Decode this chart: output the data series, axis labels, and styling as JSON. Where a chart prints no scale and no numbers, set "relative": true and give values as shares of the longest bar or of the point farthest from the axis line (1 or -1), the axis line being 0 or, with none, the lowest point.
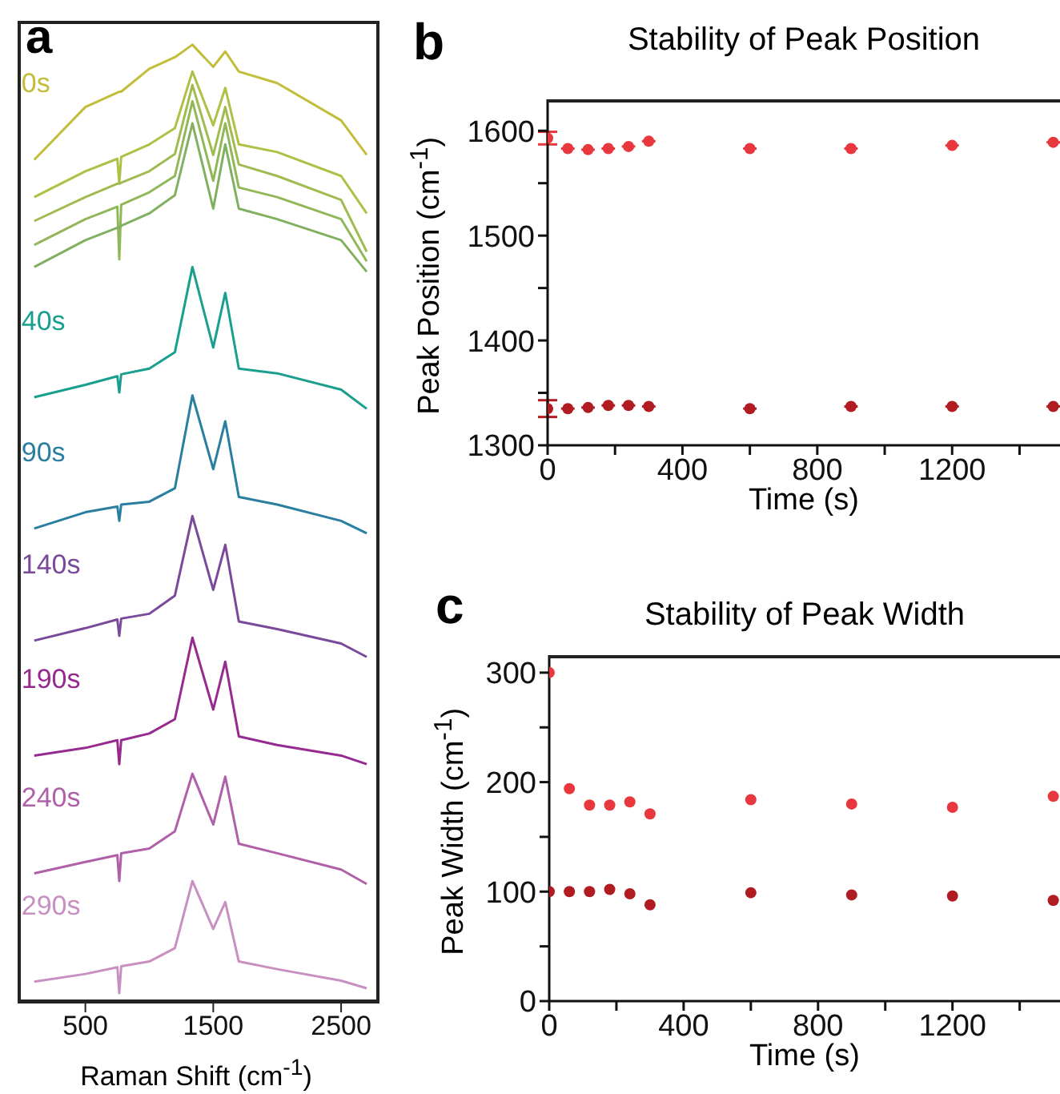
{
  "chart_data": [
    {
      "type": "line",
      "relative": true,
      "annotations": [
        "a"
      ],
      "xlabel": "Raman Shift (cm$^{-1}$)",
      "xlim": [
        -30,
        2800
      ],
      "xticks": [
        500,
        1500,
        2500
      ],
      "x": [
        100,
        500,
        750,
        765,
        780,
        1000,
        1200,
        1337,
        1500,
        1594,
        1700,
        2000,
        2500,
        2700
      ],
      "series": [
        {
          "name": "0s",
          "color": "#c2bd3a",
          "values": [
            0.88,
            0.935,
            0.95,
            0.951,
            0.951,
            0.975,
            0.987,
            1.0,
            0.977,
            0.993,
            0.972,
            0.96,
            0.921,
            0.885
          ]
        },
        {
          "color": "#b0bf45",
          "values": [
            0.841,
            0.868,
            0.881,
            0.855,
            0.883,
            0.896,
            0.913,
            0.972,
            0.916,
            0.955,
            0.896,
            0.888,
            0.863,
            0.824
          ]
        },
        {
          "color": "#a0bb50",
          "values": [
            0.816,
            0.841,
            0.855,
            0.855,
            0.856,
            0.868,
            0.886,
            0.958,
            0.885,
            0.935,
            0.875,
            0.863,
            0.838,
            0.784
          ]
        },
        {
          "color": "#90b858",
          "values": [
            0.791,
            0.818,
            0.831,
            0.776,
            0.833,
            0.846,
            0.863,
            0.941,
            0.858,
            0.918,
            0.851,
            0.841,
            0.818,
            0.774
          ]
        },
        {
          "color": "#80b060",
          "values": [
            0.768,
            0.796,
            0.809,
            0.809,
            0.811,
            0.824,
            0.843,
            0.918,
            0.829,
            0.896,
            0.829,
            0.818,
            0.796,
            0.763
          ]
        },
        {
          "name": "40s",
          "color": "#1a9f8f",
          "values": [
            0.632,
            0.645,
            0.654,
            0.637,
            0.656,
            0.662,
            0.679,
            0.768,
            0.684,
            0.741,
            0.662,
            0.657,
            0.64,
            0.62
          ]
        },
        {
          "name": "90s",
          "color": "#2a7fa0",
          "values": [
            0.495,
            0.512,
            0.518,
            0.503,
            0.52,
            0.523,
            0.537,
            0.634,
            0.557,
            0.607,
            0.528,
            0.52,
            0.503,
            0.49
          ]
        },
        {
          "name": "140s",
          "color": "#7a4a9a",
          "values": [
            0.378,
            0.391,
            0.4,
            0.383,
            0.401,
            0.406,
            0.425,
            0.508,
            0.431,
            0.478,
            0.398,
            0.39,
            0.375,
            0.361
          ]
        },
        {
          "name": "190s",
          "color": "#962a8e",
          "values": [
            0.258,
            0.266,
            0.274,
            0.249,
            0.274,
            0.281,
            0.296,
            0.381,
            0.306,
            0.356,
            0.278,
            0.269,
            0.258,
            0.249
          ]
        },
        {
          "name": "240s",
          "color": "#b060a8",
          "values": [
            0.135,
            0.147,
            0.154,
            0.127,
            0.156,
            0.161,
            0.179,
            0.239,
            0.186,
            0.236,
            0.166,
            0.156,
            0.139,
            0.124
          ]
        },
        {
          "name": "290s",
          "color": "#c890c0",
          "values": [
            0.022,
            0.03,
            0.037,
            0.01,
            0.038,
            0.043,
            0.057,
            0.127,
            0.077,
            0.105,
            0.043,
            0.035,
            0.023,
            0.015
          ]
        }
      ]
    },
    {
      "type": "scatter",
      "annotations": [
        "b"
      ],
      "title": "Stability of Peak Position",
      "xlabel": "Time (s)",
      "ylabel": "Peak Position (cm$^{-1}$)",
      "marker": "circle",
      "xlim": [
        0,
        1520
      ],
      "xticks": [
        0,
        {
          "value": 200,
          "label": null
        },
        400,
        {
          "value": 600,
          "label": null
        },
        800,
        {
          "value": 1000,
          "label": null
        },
        1200,
        {
          "value": 1400,
          "label": null
        }
      ],
      "ylim": [
        1300,
        1630
      ],
      "yticks": [
        1300,
        {
          "value": 1350,
          "label": null
        },
        1400,
        {
          "value": 1450,
          "label": null
        },
        1500,
        {
          "value": 1550,
          "label": null
        },
        1600
      ],
      "series": [
        {
          "color": "#e8383d",
          "x": [
            0,
            60,
            120,
            180,
            240,
            300,
            600,
            900,
            1200,
            1500
          ],
          "values": [
            1593,
            1583,
            1582,
            1583,
            1585,
            1590,
            1583,
            1583,
            1586,
            1589
          ],
          "errors": [
            6,
            null,
            null,
            null,
            null,
            null,
            null,
            null,
            null,
            null
          ],
          "xerrors": [
            null,
            20,
            20,
            20,
            20,
            20,
            20,
            20,
            20,
            20
          ]
        },
        {
          "color": "#b01c22",
          "x": [
            0,
            60,
            120,
            180,
            240,
            300,
            600,
            900,
            1200,
            1500
          ],
          "values": [
            1335,
            1335,
            1336,
            1338,
            1338,
            1337,
            1335,
            1337,
            1337,
            1337
          ],
          "errors": [
            8,
            null,
            null,
            null,
            null,
            null,
            null,
            null,
            null,
            null
          ],
          "xerrors": [
            null,
            20,
            20,
            20,
            20,
            20,
            20,
            20,
            20,
            20
          ]
        }
      ]
    },
    {
      "type": "scatter",
      "annotations": [
        "c"
      ],
      "title": "Stability of Peak Width",
      "xlabel": "Time (s)",
      "ylabel": "Peak Width (cm$^{-1}$)",
      "marker": "circle",
      "xlim": [
        0,
        1520
      ],
      "xticks": [
        0,
        {
          "value": 200,
          "label": null
        },
        400,
        {
          "value": 600,
          "label": null
        },
        800,
        {
          "value": 1000,
          "label": null
        },
        1200,
        {
          "value": 1400,
          "label": null
        }
      ],
      "ylim": [
        0,
        316
      ],
      "yticks": [
        0,
        {
          "value": 50,
          "label": null
        },
        100,
        {
          "value": 150,
          "label": null
        },
        200,
        {
          "value": 250,
          "label": null
        },
        300
      ],
      "series": [
        {
          "color": "#e8383d",
          "x": [
            0,
            60,
            120,
            180,
            240,
            300,
            600,
            900,
            1200,
            1500
          ],
          "values": [
            300,
            194,
            179,
            179,
            182,
            171,
            184,
            180,
            177,
            187
          ]
        },
        {
          "color": "#b01c22",
          "x": [
            0,
            60,
            120,
            180,
            240,
            300,
            600,
            900,
            1200,
            1500
          ],
          "values": [
            100,
            100,
            100,
            102,
            98,
            88,
            99,
            97,
            96,
            92
          ]
        }
      ]
    }
  ]
}
